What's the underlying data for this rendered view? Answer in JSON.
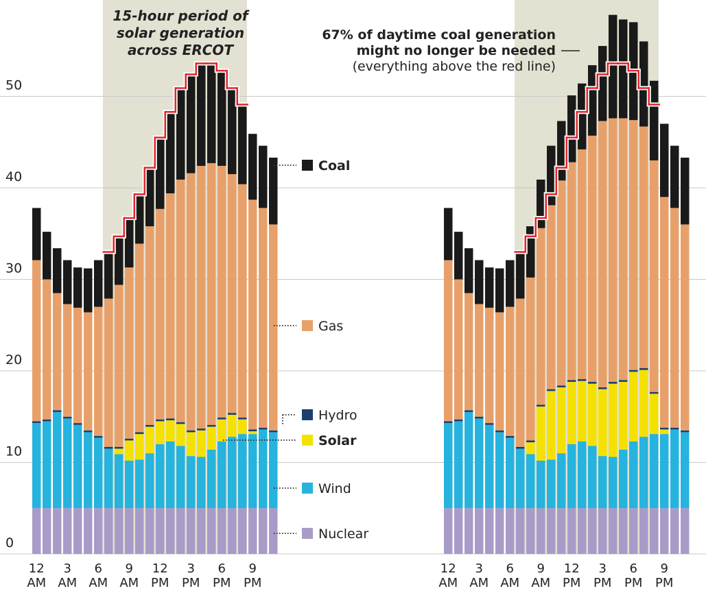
{
  "chart_data": [
    {
      "type": "stacked_bar",
      "annotation": [
        "15-hour period of",
        "solar generation",
        "across ERCOT"
      ],
      "categories": [
        "12 AM",
        null,
        null,
        "3 AM",
        null,
        null,
        "6 AM",
        null,
        null,
        "9 AM",
        null,
        null,
        "12 PM",
        null,
        null,
        "3 PM",
        null,
        null,
        "6 PM",
        null,
        null,
        "9 PM",
        null,
        null
      ],
      "highlight": [
        7,
        21
      ],
      "ylim": [
        0,
        60
      ],
      "yticks": [
        0,
        10,
        20,
        30,
        40,
        50
      ],
      "grid": true,
      "series": [
        {
          "name": "Nuclear",
          "color": "#a99bc8",
          "values": [
            5,
            5,
            5,
            5,
            5,
            5,
            5,
            5,
            5,
            5,
            5,
            5,
            5,
            5,
            5,
            5,
            5,
            5,
            5,
            5,
            5,
            5,
            5,
            5
          ]
        },
        {
          "name": "Wind",
          "color": "#26b3dd",
          "values": [
            9.3,
            9.5,
            10.5,
            9.8,
            9.1,
            8.3,
            7.7,
            6.5,
            5.9,
            5.2,
            5.3,
            6.0,
            7.0,
            7.3,
            6.8,
            5.7,
            5.6,
            6.4,
            7.3,
            7.8,
            8.1,
            8.1,
            8.6,
            8.3
          ]
        },
        {
          "name": "Solar",
          "color": "#f5e100",
          "emphasis": true,
          "values": [
            0,
            0,
            0,
            0,
            0,
            0,
            0,
            0,
            0.6,
            2.2,
            2.8,
            2.9,
            2.5,
            2.3,
            2.4,
            2.6,
            2.9,
            2.5,
            2.4,
            2.4,
            1.6,
            0.3,
            0,
            0
          ]
        },
        {
          "name": "Hydro",
          "color": "#1d3f6e",
          "values": [
            0.2,
            0.2,
            0.2,
            0.2,
            0.2,
            0.2,
            0.2,
            0.2,
            0.2,
            0.2,
            0.2,
            0.2,
            0.2,
            0.2,
            0.2,
            0.2,
            0.2,
            0.2,
            0.2,
            0.2,
            0.2,
            0.2,
            0.2,
            0.2
          ]
        },
        {
          "name": "Gas",
          "color": "#e8a06a",
          "values": [
            17.6,
            15.3,
            12.8,
            12.3,
            12.6,
            12.9,
            14.1,
            16.2,
            17.7,
            18.7,
            20.6,
            21.7,
            23.0,
            24.6,
            26.5,
            28.1,
            28.7,
            28.6,
            27.5,
            26.1,
            25.5,
            25.1,
            24.0,
            22.5
          ]
        },
        {
          "name": "Coal",
          "color": "#1a1a1a",
          "emphasis": true,
          "values": [
            5.7,
            5.2,
            4.9,
            4.8,
            4.4,
            4.8,
            5.1,
            5.1,
            5.3,
            5.4,
            5.4,
            6.4,
            7.8,
            8.9,
            10.0,
            10.8,
            11.2,
            10.9,
            10.4,
            9.4,
            8.7,
            7.2,
            6.8,
            7.3
          ]
        }
      ],
      "threshold_line": {
        "color": "#e0262a",
        "values": [
          null,
          null,
          null,
          null,
          null,
          null,
          null,
          33.0,
          34.7,
          36.7,
          39.3,
          42.2,
          45.5,
          48.3,
          50.9,
          52.4,
          53.6,
          53.6,
          52.8,
          50.9,
          49.1,
          null,
          null,
          null
        ]
      }
    },
    {
      "type": "stacked_bar",
      "annotation": [
        "67% of daytime coal generation",
        "might no longer be needed",
        "(everything above the red line)"
      ],
      "categories": [
        "12 AM",
        null,
        null,
        "3 AM",
        null,
        null,
        "6 AM",
        null,
        null,
        "9 AM",
        null,
        null,
        "12 PM",
        null,
        null,
        "3 PM",
        null,
        null,
        "6 PM",
        null,
        null,
        "9 PM",
        null,
        null
      ],
      "highlight": [
        7,
        21
      ],
      "ylim": [
        0,
        60
      ],
      "yticks": [
        0,
        10,
        20,
        30,
        40,
        50
      ],
      "grid": true,
      "series": [
        {
          "name": "Nuclear",
          "color": "#a99bc8",
          "values": [
            5,
            5,
            5,
            5,
            5,
            5,
            5,
            5,
            5,
            5,
            5,
            5,
            5,
            5,
            5,
            5,
            5,
            5,
            5,
            5,
            5,
            5,
            5,
            5
          ]
        },
        {
          "name": "Wind",
          "color": "#26b3dd",
          "values": [
            9.3,
            9.5,
            10.5,
            9.8,
            9.1,
            8.3,
            7.7,
            6.5,
            5.9,
            5.2,
            5.3,
            6.0,
            7.0,
            7.3,
            6.8,
            5.7,
            5.6,
            6.4,
            7.3,
            7.8,
            8.1,
            8.1,
            8.6,
            8.3
          ]
        },
        {
          "name": "Solar",
          "color": "#f5e100",
          "values": [
            0,
            0,
            0,
            0,
            0,
            0,
            0,
            0,
            1.3,
            5.9,
            7.5,
            7.2,
            6.8,
            6.6,
            6.8,
            7.3,
            8.0,
            7.4,
            7.6,
            7.3,
            4.4,
            0.5,
            0,
            0
          ]
        },
        {
          "name": "Hydro",
          "color": "#1d3f6e",
          "values": [
            0.2,
            0.2,
            0.2,
            0.2,
            0.2,
            0.2,
            0.2,
            0.2,
            0.2,
            0.2,
            0.2,
            0.2,
            0.2,
            0.2,
            0.2,
            0.2,
            0.2,
            0.2,
            0.2,
            0.2,
            0.2,
            0.2,
            0.2,
            0.2
          ]
        },
        {
          "name": "Gas",
          "color": "#e8a06a",
          "values": [
            17.6,
            15.3,
            12.8,
            12.3,
            12.6,
            12.9,
            14.1,
            16.2,
            17.8,
            19.3,
            20.1,
            22.4,
            23.8,
            25.1,
            26.9,
            29.1,
            28.8,
            28.6,
            27.3,
            26.4,
            25.3,
            25.2,
            24.0,
            22.5
          ]
        },
        {
          "name": "Coal",
          "color": "#1a1a1a",
          "values": [
            5.7,
            5.2,
            4.9,
            4.8,
            4.4,
            4.8,
            5.1,
            5.1,
            5.6,
            5.3,
            6.5,
            6.5,
            7.3,
            7.2,
            7.7,
            8.2,
            11.3,
            10.8,
            10.7,
            9.3,
            8.7,
            8.0,
            6.8,
            7.3
          ]
        }
      ],
      "threshold_line": {
        "color": "#e0262a",
        "values": [
          null,
          null,
          null,
          null,
          null,
          null,
          null,
          33.0,
          34.7,
          36.7,
          39.3,
          42.2,
          45.5,
          48.3,
          50.9,
          52.4,
          53.6,
          53.6,
          52.8,
          50.9,
          49.1,
          null,
          null,
          null
        ]
      }
    }
  ]
}
